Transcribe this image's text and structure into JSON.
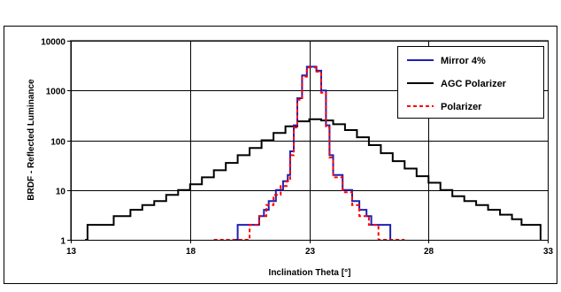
{
  "chart_data": {
    "type": "line",
    "title": "",
    "xlabel": "Inclination Theta [°]",
    "ylabel": "BRDF - Reflected Luminance",
    "xlim": [
      13,
      33
    ],
    "ylim": [
      1,
      10000
    ],
    "yscale": "log",
    "grid": true,
    "legend_position": "top-right",
    "x_ticks": [
      "13",
      "18",
      "23",
      "28",
      "33"
    ],
    "y_ticks": [
      "1",
      "10",
      "100",
      "1000",
      "10000"
    ],
    "series": [
      {
        "name": "Mirror 4%",
        "color": "#1f1fb4",
        "dash": "solid",
        "step": true,
        "points": [
          [
            19.9,
            1
          ],
          [
            20.0,
            2
          ],
          [
            20.8,
            2
          ],
          [
            20.9,
            3
          ],
          [
            21.1,
            4
          ],
          [
            21.3,
            6
          ],
          [
            21.6,
            10
          ],
          [
            21.9,
            15
          ],
          [
            22.1,
            20
          ],
          [
            22.2,
            60
          ],
          [
            22.35,
            200
          ],
          [
            22.5,
            700
          ],
          [
            22.7,
            2000
          ],
          [
            22.9,
            3000
          ],
          [
            23.1,
            3000
          ],
          [
            23.3,
            2500
          ],
          [
            23.5,
            1000
          ],
          [
            23.7,
            200
          ],
          [
            23.85,
            50
          ],
          [
            24.0,
            20
          ],
          [
            24.4,
            10
          ],
          [
            24.8,
            6
          ],
          [
            25.1,
            4
          ],
          [
            25.4,
            3
          ],
          [
            25.6,
            2
          ],
          [
            26.3,
            2
          ],
          [
            26.4,
            1
          ]
        ]
      },
      {
        "name": "AGC Polarizer",
        "color": "#000000",
        "dash": "solid",
        "step": true,
        "points": [
          [
            13.6,
            1
          ],
          [
            13.7,
            2
          ],
          [
            14.7,
            2
          ],
          [
            14.8,
            3
          ],
          [
            15.4,
            3
          ],
          [
            15.5,
            4
          ],
          [
            16.0,
            5
          ],
          [
            16.5,
            6
          ],
          [
            17.0,
            8
          ],
          [
            17.5,
            10
          ],
          [
            18.0,
            13
          ],
          [
            18.5,
            18
          ],
          [
            19.0,
            25
          ],
          [
            19.5,
            35
          ],
          [
            20.0,
            50
          ],
          [
            20.5,
            70
          ],
          [
            21.0,
            100
          ],
          [
            21.5,
            140
          ],
          [
            22.0,
            190
          ],
          [
            22.5,
            240
          ],
          [
            23.0,
            265
          ],
          [
            23.5,
            250
          ],
          [
            24.0,
            210
          ],
          [
            24.5,
            160
          ],
          [
            25.0,
            115
          ],
          [
            25.5,
            80
          ],
          [
            26.0,
            55
          ],
          [
            26.5,
            38
          ],
          [
            27.0,
            27
          ],
          [
            27.5,
            19
          ],
          [
            28.0,
            14
          ],
          [
            28.5,
            10
          ],
          [
            29.0,
            7.5
          ],
          [
            29.5,
            6
          ],
          [
            30.0,
            5
          ],
          [
            30.5,
            4
          ],
          [
            31.0,
            3.2
          ],
          [
            31.5,
            2.6
          ],
          [
            31.9,
            2
          ],
          [
            32.6,
            2
          ],
          [
            32.7,
            1
          ]
        ]
      },
      {
        "name": "Polarizer",
        "color": "#ff0000",
        "dash": "dashed",
        "step": true,
        "points": [
          [
            19.0,
            1
          ],
          [
            20.4,
            1
          ],
          [
            20.5,
            2
          ],
          [
            20.9,
            3
          ],
          [
            21.2,
            5
          ],
          [
            21.5,
            8
          ],
          [
            21.8,
            12
          ],
          [
            22.05,
            15
          ],
          [
            22.2,
            50
          ],
          [
            22.35,
            180
          ],
          [
            22.5,
            650
          ],
          [
            22.7,
            1900
          ],
          [
            22.9,
            2900
          ],
          [
            23.1,
            2900
          ],
          [
            23.3,
            2400
          ],
          [
            23.5,
            900
          ],
          [
            23.7,
            180
          ],
          [
            23.85,
            45
          ],
          [
            24.0,
            18
          ],
          [
            24.4,
            9
          ],
          [
            24.8,
            5
          ],
          [
            25.1,
            3
          ],
          [
            25.5,
            2
          ],
          [
            25.8,
            2
          ],
          [
            25.9,
            1
          ],
          [
            27.0,
            1
          ]
        ]
      }
    ]
  }
}
